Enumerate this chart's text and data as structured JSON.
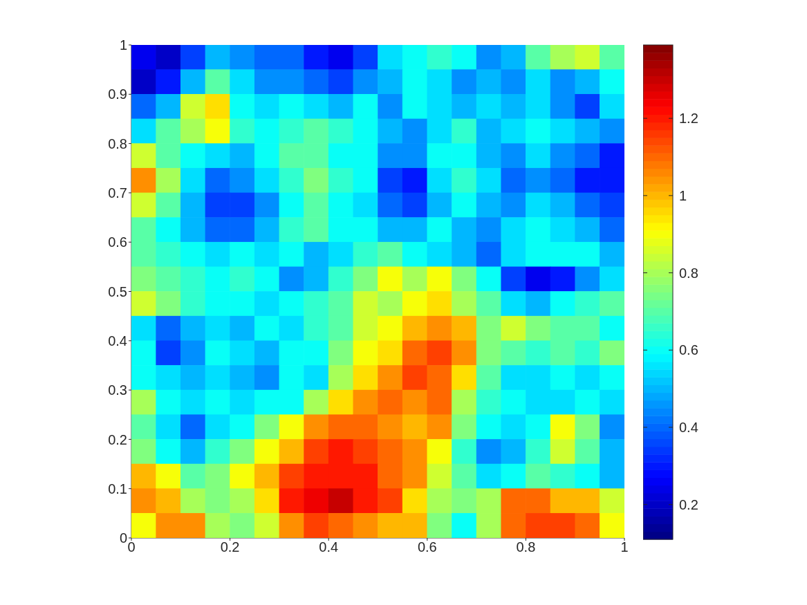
{
  "chart_data": {
    "type": "heatmap",
    "xlim": [
      0,
      1
    ],
    "ylim": [
      0,
      1
    ],
    "xticks": [
      0,
      0.2,
      0.4,
      0.6,
      0.8,
      1
    ],
    "yticks": [
      0,
      0.1,
      0.2,
      0.3,
      0.4,
      0.5,
      0.6,
      0.7,
      0.8,
      0.9,
      1
    ],
    "clim": [
      0.11,
      1.39
    ],
    "cticks": [
      0.2,
      0.4,
      0.6,
      0.8,
      1,
      1.2
    ],
    "cells": [
      [
        0.25,
        0.2,
        0.35,
        0.5,
        0.45,
        0.4,
        0.4,
        0.3,
        0.25,
        0.35,
        0.55,
        0.6,
        0.65,
        0.6,
        0.45,
        0.5,
        0.7,
        0.8,
        0.85,
        0.7
      ],
      [
        0.2,
        0.3,
        0.5,
        0.7,
        0.55,
        0.45,
        0.45,
        0.4,
        0.35,
        0.45,
        0.5,
        0.6,
        0.55,
        0.45,
        0.5,
        0.45,
        0.55,
        0.45,
        0.5,
        0.6
      ],
      [
        0.4,
        0.5,
        0.85,
        0.95,
        0.6,
        0.55,
        0.6,
        0.55,
        0.5,
        0.6,
        0.45,
        0.6,
        0.55,
        0.5,
        0.55,
        0.5,
        0.55,
        0.45,
        0.35,
        0.55
      ],
      [
        0.55,
        0.7,
        0.8,
        0.9,
        0.65,
        0.6,
        0.65,
        0.7,
        0.65,
        0.6,
        0.5,
        0.45,
        0.55,
        0.65,
        0.5,
        0.55,
        0.6,
        0.55,
        0.5,
        0.45
      ],
      [
        0.85,
        0.7,
        0.6,
        0.55,
        0.5,
        0.6,
        0.7,
        0.7,
        0.6,
        0.6,
        0.45,
        0.45,
        0.6,
        0.6,
        0.5,
        0.45,
        0.55,
        0.45,
        0.4,
        0.3
      ],
      [
        1.05,
        0.8,
        0.55,
        0.4,
        0.45,
        0.55,
        0.65,
        0.75,
        0.65,
        0.6,
        0.35,
        0.3,
        0.55,
        0.65,
        0.55,
        0.4,
        0.45,
        0.4,
        0.3,
        0.3
      ],
      [
        0.85,
        0.7,
        0.5,
        0.35,
        0.35,
        0.45,
        0.6,
        0.7,
        0.6,
        0.55,
        0.4,
        0.35,
        0.5,
        0.6,
        0.5,
        0.45,
        0.55,
        0.5,
        0.4,
        0.35
      ],
      [
        0.7,
        0.6,
        0.5,
        0.4,
        0.4,
        0.5,
        0.65,
        0.7,
        0.6,
        0.6,
        0.5,
        0.5,
        0.6,
        0.5,
        0.45,
        0.55,
        0.6,
        0.55,
        0.5,
        0.4
      ],
      [
        0.7,
        0.65,
        0.6,
        0.55,
        0.6,
        0.55,
        0.6,
        0.5,
        0.55,
        0.65,
        0.7,
        0.6,
        0.55,
        0.5,
        0.4,
        0.55,
        0.6,
        0.6,
        0.6,
        0.5
      ],
      [
        0.75,
        0.7,
        0.65,
        0.6,
        0.65,
        0.6,
        0.45,
        0.5,
        0.65,
        0.75,
        0.9,
        0.8,
        0.9,
        0.75,
        0.6,
        0.35,
        0.25,
        0.3,
        0.45,
        0.55
      ],
      [
        0.85,
        0.75,
        0.65,
        0.6,
        0.6,
        0.55,
        0.6,
        0.65,
        0.7,
        0.85,
        0.8,
        0.9,
        0.95,
        0.8,
        0.7,
        0.55,
        0.5,
        0.6,
        0.65,
        0.7
      ],
      [
        0.55,
        0.4,
        0.5,
        0.55,
        0.5,
        0.6,
        0.55,
        0.65,
        0.7,
        0.85,
        0.9,
        1.0,
        1.05,
        1.0,
        0.75,
        0.85,
        0.75,
        0.7,
        0.7,
        0.6
      ],
      [
        0.6,
        0.35,
        0.45,
        0.6,
        0.55,
        0.5,
        0.6,
        0.6,
        0.75,
        0.9,
        0.95,
        1.1,
        1.15,
        1.05,
        0.75,
        0.7,
        0.65,
        0.7,
        0.65,
        0.75
      ],
      [
        0.6,
        0.55,
        0.5,
        0.55,
        0.5,
        0.45,
        0.6,
        0.55,
        0.8,
        0.95,
        1.05,
        1.15,
        1.1,
        0.95,
        0.7,
        0.55,
        0.55,
        0.6,
        0.55,
        0.6
      ],
      [
        0.8,
        0.6,
        0.55,
        0.6,
        0.55,
        0.6,
        0.6,
        0.8,
        0.95,
        1.05,
        1.1,
        1.05,
        1.1,
        0.8,
        0.65,
        0.6,
        0.55,
        0.55,
        0.6,
        0.55
      ],
      [
        0.7,
        0.55,
        0.4,
        0.55,
        0.6,
        0.75,
        0.9,
        1.05,
        1.1,
        1.1,
        1.05,
        1.0,
        1.05,
        0.75,
        0.6,
        0.55,
        0.6,
        0.9,
        0.75,
        0.45
      ],
      [
        0.75,
        0.6,
        0.5,
        0.65,
        0.75,
        0.9,
        1.0,
        1.15,
        1.2,
        1.15,
        1.1,
        1.05,
        0.9,
        0.65,
        0.45,
        0.5,
        0.65,
        0.85,
        0.7,
        0.5
      ],
      [
        1.0,
        0.9,
        0.7,
        0.75,
        0.9,
        1.0,
        1.15,
        1.2,
        1.2,
        1.2,
        1.1,
        1.05,
        0.85,
        0.7,
        0.55,
        0.6,
        0.7,
        0.65,
        0.6,
        0.5
      ],
      [
        1.05,
        1.0,
        0.8,
        0.75,
        0.8,
        0.95,
        1.2,
        1.25,
        1.3,
        1.2,
        1.15,
        0.95,
        0.8,
        0.75,
        0.8,
        1.1,
        1.1,
        1.0,
        1.0,
        0.85
      ],
      [
        0.9,
        1.05,
        1.05,
        0.8,
        0.75,
        0.85,
        1.05,
        1.15,
        1.1,
        1.05,
        1.0,
        1.0,
        0.75,
        0.6,
        0.8,
        1.1,
        1.15,
        1.15,
        1.1,
        0.9
      ]
    ]
  }
}
